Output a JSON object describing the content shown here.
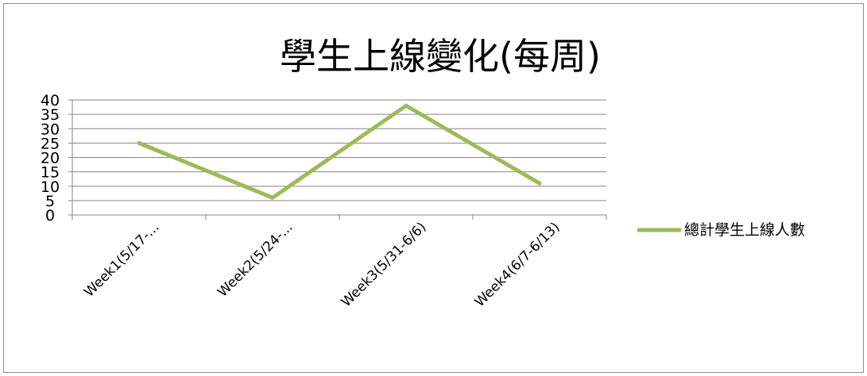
{
  "chart_data": {
    "type": "line",
    "title": "學生上線變化(每周)",
    "categories": [
      "Week1(5/17-...",
      "Week2(5/24-...",
      "Week3(5/31-6/6)",
      "Week4(6/7-6/13)"
    ],
    "series": [
      {
        "name": "總計學生上線人數",
        "values": [
          25,
          6,
          38,
          11
        ],
        "color": "#9bbb59"
      }
    ],
    "ylim": [
      0,
      40
    ],
    "yticks": [
      "0",
      "5",
      "10",
      "15",
      "20",
      "25",
      "30",
      "35",
      "40"
    ],
    "xlabel": "",
    "ylabel": "",
    "grid": true,
    "legend_position": "right"
  }
}
